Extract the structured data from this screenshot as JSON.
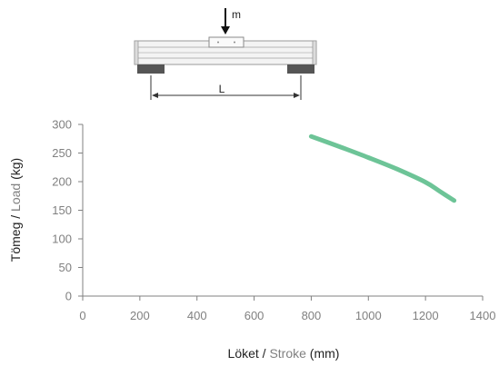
{
  "diagram": {
    "mass_label": "m",
    "span_label": "L"
  },
  "chart_data": {
    "type": "line",
    "title": "",
    "xlabel_parts": [
      {
        "text": "Löket",
        "color": "#222222"
      },
      {
        "text": " / ",
        "color": "#222222"
      },
      {
        "text": "Stroke",
        "color": "#808080"
      },
      {
        "text": " (mm)",
        "color": "#222222"
      }
    ],
    "ylabel_parts": [
      {
        "text": "Tömeg",
        "color": "#222222"
      },
      {
        "text": " / ",
        "color": "#222222"
      },
      {
        "text": "Load",
        "color": "#808080"
      },
      {
        "text": " (kg)",
        "color": "#222222"
      }
    ],
    "xlim": [
      0,
      1400
    ],
    "ylim": [
      0,
      300
    ],
    "xticks": [
      0,
      200,
      400,
      600,
      800,
      1000,
      1200,
      1400
    ],
    "yticks": [
      0,
      50,
      100,
      150,
      200,
      250,
      300
    ],
    "grid": false,
    "series": [
      {
        "color": "#6dc497",
        "x": [
          800,
          900,
          1000,
          1100,
          1200,
          1250,
          1300
        ],
        "y": [
          279,
          261,
          242,
          222,
          199,
          183,
          167
        ]
      }
    ]
  }
}
